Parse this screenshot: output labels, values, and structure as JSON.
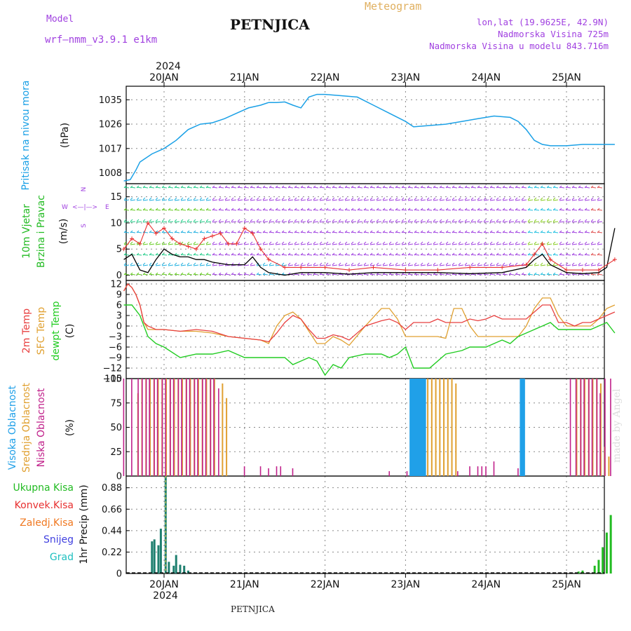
{
  "header": {
    "model_label": "Model",
    "model_name": "wrf—nmm_v3.9.1  e1km",
    "title": "PETNJICA",
    "meteogram": "Meteogram",
    "lonlat": "lon,lat (19.9625E, 42.9N)",
    "altitude": "Nadmorska Visina 725m",
    "model_altitude": "Nadmorska Visina u modelu 843.716m",
    "year": "2024",
    "footer": "PETNJICA",
    "watermark": "made by Angel"
  },
  "colors": {
    "pressure": "#1aa0e6",
    "wind_label": "#22bb22",
    "wind_black": "#000000",
    "wind_red": "#e83030",
    "temp2m": "#e84040",
    "tempsfc": "#e0a030",
    "dewpt": "#22cc22",
    "purple": "#a040e0",
    "high_cloud": "#20a0e8",
    "mid_cloud": "#e0a030",
    "low_cloud": "#c0208a",
    "precip_bar": "#208070",
    "precip_green": "#22bb22"
  },
  "chart_data": [
    {
      "type": "line",
      "panel": "pressure",
      "ylabel": [
        "Pritisak na nivou mora",
        "(hPa)"
      ],
      "ylim": [
        1004,
        1040
      ],
      "yticks": [
        1008,
        1017,
        1026,
        1035
      ],
      "x_dates": [
        "20JAN",
        "21JAN",
        "22JAN",
        "23JAN",
        "24JAN",
        "25JAN"
      ],
      "series": [
        {
          "x": [
            -0.5,
            -0.42,
            -0.35,
            -0.3,
            -0.25,
            -0.15,
            0,
            0.15,
            0.3,
            0.45,
            0.6,
            0.75,
            0.9,
            1.05,
            1.2,
            1.3,
            1.4,
            1.5,
            1.6,
            1.7,
            1.8,
            1.9,
            2.0,
            2.2,
            2.4,
            2.6,
            2.8,
            3.0,
            3.1,
            3.3,
            3.5,
            3.7,
            3.9,
            4.1,
            4.3,
            4.4,
            4.5,
            4.6,
            4.7,
            4.8,
            5.0,
            5.2,
            5.4,
            5.6
          ],
          "y": [
            1005,
            1005.5,
            1009,
            1012,
            1013,
            1015,
            1017,
            1020,
            1024,
            1026,
            1026.5,
            1028,
            1030,
            1032,
            1033,
            1034,
            1034,
            1034.2,
            1033,
            1032,
            1036,
            1037,
            1037,
            1036.5,
            1036,
            1033,
            1030,
            1027,
            1025,
            1025.5,
            1026,
            1027,
            1028,
            1029,
            1028.5,
            1027,
            1024,
            1020,
            1018.5,
            1018,
            1018,
            1018.5,
            1018.5,
            1018.5
          ]
        }
      ]
    },
    {
      "type": "line",
      "panel": "wind",
      "ylabel": [
        "10m Vjetar",
        "Brzina i Pravac",
        "(m/s)"
      ],
      "compass": [
        "N",
        "S",
        "W",
        "E"
      ],
      "ylim": [
        -1,
        17.5
      ],
      "yticks": [
        0,
        5,
        10,
        15
      ],
      "series": [
        {
          "name": "speed",
          "x": [
            -0.5,
            -0.4,
            -0.3,
            -0.2,
            -0.1,
            0,
            0.1,
            0.2,
            0.3,
            0.4,
            0.5,
            0.6,
            0.8,
            1.0,
            1.1,
            1.2,
            1.3,
            1.5,
            1.7,
            2.0,
            2.3,
            2.6,
            3.0,
            3.4,
            3.8,
            4.2,
            4.5,
            4.6,
            4.7,
            4.8,
            5.0,
            5.2,
            5.4,
            5.5,
            5.6
          ],
          "y": [
            3,
            4,
            1,
            0.5,
            3,
            5,
            4,
            3.5,
            3.5,
            3,
            3,
            2.5,
            2,
            2,
            3.5,
            1.5,
            0.5,
            0,
            0.5,
            0.5,
            0.2,
            0.5,
            0.5,
            0.5,
            0.3,
            0.5,
            1.5,
            3,
            4,
            2,
            0.5,
            0.3,
            0.5,
            1.5,
            9
          ]
        },
        {
          "name": "gust",
          "x": [
            -0.5,
            -0.4,
            -0.3,
            -0.2,
            -0.1,
            0,
            0.1,
            0.2,
            0.3,
            0.4,
            0.5,
            0.6,
            0.7,
            0.8,
            0.9,
            1.0,
            1.1,
            1.2,
            1.3,
            1.5,
            1.7,
            2.0,
            2.3,
            2.6,
            3.0,
            3.4,
            3.8,
            4.2,
            4.5,
            4.6,
            4.7,
            4.8,
            5.0,
            5.2,
            5.4,
            5.6
          ],
          "y": [
            5,
            7,
            6,
            10,
            8,
            9,
            7,
            6,
            5.5,
            5,
            7,
            7.5,
            8,
            6,
            6,
            9,
            8,
            5,
            3,
            1.5,
            1.5,
            1.5,
            1,
            1.5,
            1,
            1,
            1.5,
            1.5,
            2,
            4,
            6,
            3,
            1,
            1,
            1,
            3
          ]
        }
      ]
    },
    {
      "type": "line",
      "panel": "temperature",
      "ylabel": [
        "2m Temp",
        "SFC Temp",
        "dewpt Temp",
        "(C)"
      ],
      "ylim": [
        -15,
        13
      ],
      "yticks": [
        -15,
        -12,
        -9,
        -6,
        -3,
        0,
        3,
        6,
        9,
        12
      ],
      "series": [
        {
          "name": "2m Temp",
          "x": [
            -0.5,
            -0.45,
            -0.4,
            -0.35,
            -0.3,
            -0.25,
            -0.2,
            -0.1,
            0,
            0.2,
            0.4,
            0.6,
            0.8,
            1.0,
            1.2,
            1.3,
            1.4,
            1.5,
            1.6,
            1.7,
            1.8,
            1.9,
            2.0,
            2.1,
            2.2,
            2.3,
            2.5,
            2.7,
            2.8,
            2.9,
            3.0,
            3.1,
            3.2,
            3.3,
            3.4,
            3.5,
            3.6,
            3.7,
            3.8,
            3.9,
            4.0,
            4.1,
            4.2,
            4.3,
            4.4,
            4.5,
            4.6,
            4.7,
            4.8,
            4.9,
            5.0,
            5.1,
            5.2,
            5.3,
            5.4,
            5.5,
            5.6
          ],
          "y": [
            10,
            12,
            11,
            9,
            6,
            1,
            0,
            -1,
            -1,
            -1.5,
            -1,
            -1.5,
            -3,
            -3.5,
            -4,
            -4.5,
            -2,
            1,
            3,
            2,
            -1,
            -3.5,
            -3.5,
            -2.5,
            -3,
            -4,
            0,
            1.5,
            2,
            1,
            -1,
            1,
            1,
            1,
            2,
            1,
            1,
            1,
            2,
            1.5,
            2,
            3,
            2,
            2,
            2,
            2,
            4,
            6,
            6,
            1,
            1,
            0,
            1,
            1,
            2,
            3,
            4
          ]
        },
        {
          "name": "SFC Temp",
          "x": [
            -0.5,
            -0.45,
            -0.4,
            -0.35,
            -0.3,
            -0.25,
            -0.2,
            -0.1,
            0,
            0.2,
            0.4,
            0.6,
            0.8,
            1.0,
            1.2,
            1.3,
            1.4,
            1.5,
            1.6,
            1.7,
            1.8,
            1.9,
            2.0,
            2.1,
            2.2,
            2.3,
            2.5,
            2.7,
            2.8,
            2.9,
            3.0,
            3.1,
            3.2,
            3.3,
            3.4,
            3.5,
            3.6,
            3.7,
            3.8,
            3.9,
            4.0,
            4.1,
            4.2,
            4.3,
            4.4,
            4.5,
            4.6,
            4.7,
            4.8,
            4.9,
            5.0,
            5.1,
            5.2,
            5.3,
            5.4,
            5.5,
            5.6
          ],
          "y": [
            10,
            12,
            11,
            9,
            6,
            1,
            -1,
            -1,
            -1,
            -1.5,
            -1.5,
            -2,
            -3,
            -3.5,
            -4,
            -5,
            0,
            3,
            4,
            2,
            -1.5,
            -5,
            -5,
            -3,
            -4,
            -5.5,
            0,
            5,
            5,
            2,
            -3,
            -3,
            -3,
            -3,
            -3,
            -3.5,
            5,
            5,
            0,
            -3,
            -3,
            -3,
            -3,
            -3,
            -3,
            0,
            5,
            8,
            8,
            3,
            0,
            0,
            0,
            0,
            2,
            5,
            6
          ]
        },
        {
          "name": "dewpt Temp",
          "x": [
            -0.5,
            -0.4,
            -0.3,
            -0.2,
            -0.1,
            0,
            0.2,
            0.4,
            0.6,
            0.8,
            1.0,
            1.2,
            1.3,
            1.4,
            1.5,
            1.6,
            1.7,
            1.8,
            1.9,
            2.0,
            2.1,
            2.2,
            2.3,
            2.5,
            2.7,
            2.8,
            2.9,
            3.0,
            3.1,
            3.2,
            3.3,
            3.5,
            3.7,
            3.8,
            3.9,
            4.0,
            4.1,
            4.2,
            4.3,
            4.4,
            4.5,
            4.6,
            4.7,
            4.8,
            4.9,
            5.0,
            5.1,
            5.2,
            5.3,
            5.4,
            5.5,
            5.6
          ],
          "y": [
            6,
            6,
            3,
            -3,
            -5,
            -6,
            -9,
            -8,
            -8,
            -7,
            -9,
            -9,
            -9,
            -9,
            -9,
            -11,
            -10,
            -9,
            -10,
            -14,
            -11,
            -12,
            -9,
            -8,
            -8,
            -9,
            -8,
            -6,
            -12,
            -12,
            -12,
            -8,
            -7,
            -6,
            -6,
            -6,
            -5,
            -4,
            -5,
            -3,
            -2,
            -1,
            0,
            1,
            -1,
            -1,
            -1,
            -1,
            -1,
            0,
            1,
            -2
          ]
        }
      ]
    },
    {
      "type": "bar",
      "panel": "clouds",
      "ylabel": [
        "Visoka Oblacnost",
        "Srednja Oblacnost",
        "Niska Oblacnost",
        "(%)"
      ],
      "ylim": [
        0,
        100
      ],
      "yticks": [
        0,
        25,
        50,
        75,
        100
      ],
      "series": [
        {
          "name": "Visoka Oblacnost",
          "x": [
            3.05,
            3.07,
            3.1,
            3.12,
            3.15,
            3.17,
            3.2,
            3.22,
            4.42,
            4.45
          ],
          "values": [
            100,
            100,
            100,
            100,
            100,
            100,
            100,
            100,
            100,
            100
          ]
        },
        {
          "name": "Srednja Oblacnost",
          "x": [
            -0.35,
            -0.3,
            -0.25,
            -0.2,
            -0.15,
            -0.1,
            -0.05,
            0,
            0.05,
            0.1,
            0.15,
            0.2,
            0.25,
            0.3,
            0.35,
            0.4,
            0.45,
            0.5,
            0.55,
            0.6,
            0.7,
            0.75,
            3.25,
            3.3,
            3.35,
            3.4,
            3.45,
            3.5,
            3.55,
            3.6,
            5.1,
            5.15,
            5.2,
            5.25,
            5.3,
            5.35,
            5.4,
            5.45,
            5.5
          ],
          "values": [
            85,
            100,
            100,
            100,
            100,
            100,
            100,
            100,
            100,
            100,
            100,
            100,
            100,
            100,
            100,
            100,
            100,
            100,
            100,
            100,
            95,
            80,
            100,
            100,
            100,
            100,
            100,
            100,
            100,
            95,
            100,
            100,
            100,
            100,
            100,
            100,
            95,
            30,
            20
          ]
        },
        {
          "name": "Niska Oblacnost",
          "x": [
            -0.5,
            -0.4,
            -0.32,
            -0.27,
            -0.22,
            -0.18,
            -0.12,
            -0.08,
            -0.02,
            0.02,
            0.08,
            0.12,
            0.18,
            0.22,
            0.28,
            0.32,
            0.38,
            0.42,
            0.48,
            0.52,
            0.58,
            0.62,
            0.68,
            1.0,
            1.2,
            1.3,
            1.4,
            1.45,
            1.6,
            2.8,
            3.02,
            3.65,
            3.8,
            3.9,
            3.95,
            4.0,
            4.1,
            4.4,
            5.05,
            5.12,
            5.18,
            5.22,
            5.28,
            5.32,
            5.38,
            5.42,
            5.48,
            5.55
          ],
          "values": [
            100,
            100,
            100,
            100,
            100,
            100,
            100,
            100,
            100,
            100,
            100,
            100,
            100,
            100,
            100,
            100,
            100,
            100,
            100,
            100,
            100,
            100,
            90,
            10,
            10,
            8,
            10,
            10,
            8,
            5,
            5,
            5,
            10,
            10,
            10,
            10,
            15,
            8,
            100,
            100,
            100,
            100,
            100,
            100,
            100,
            85,
            100,
            100
          ]
        }
      ]
    },
    {
      "type": "bar",
      "panel": "precipitation",
      "ylabel": [
        "1hr Precip (mm)"
      ],
      "legend": [
        "Ukupna Kisa",
        "Konvek.Kisa",
        "Zaledj.Kisa",
        "Snijeg",
        "Grad"
      ],
      "ylim": [
        0,
        1.0
      ],
      "yticks": [
        0,
        0.22,
        0.44,
        0.66,
        0.88
      ],
      "series": [
        {
          "name": "Ukupna Kisa",
          "x": [
            -0.15,
            -0.12,
            -0.07,
            -0.04,
            0.02,
            0.06,
            0.12,
            0.15,
            0.2,
            0.25,
            0.3,
            5.15,
            5.2,
            5.35,
            5.4,
            5.45,
            5.5,
            5.55
          ],
          "values": [
            0.33,
            0.35,
            0.29,
            0.46,
            1.0,
            0.12,
            0.08,
            0.19,
            0.09,
            0.08,
            0.03,
            0.02,
            0.03,
            0.08,
            0.14,
            0.27,
            0.42,
            0.6
          ]
        }
      ]
    }
  ]
}
